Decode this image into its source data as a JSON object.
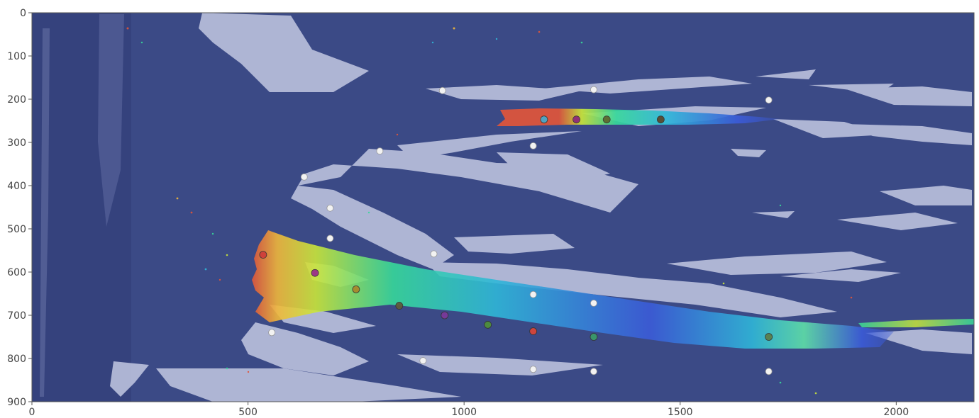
{
  "axes": {
    "x_ticks": [
      {
        "value": 0,
        "label": "0"
      },
      {
        "value": 500,
        "label": "500"
      },
      {
        "value": 1000,
        "label": "1000"
      },
      {
        "value": 1500,
        "label": "1500"
      },
      {
        "value": 2000,
        "label": "2000"
      }
    ],
    "y_ticks": [
      {
        "value": 0,
        "label": "0"
      },
      {
        "value": 100,
        "label": "100"
      },
      {
        "value": 200,
        "label": "200"
      },
      {
        "value": 300,
        "label": "300"
      },
      {
        "value": 400,
        "label": "400"
      },
      {
        "value": 500,
        "label": "500"
      },
      {
        "value": 600,
        "label": "600"
      },
      {
        "value": 700,
        "label": "700"
      },
      {
        "value": 800,
        "label": "800"
      },
      {
        "value": 900,
        "label": "900"
      }
    ],
    "x_range": [
      0,
      2180
    ],
    "y_range": [
      0,
      900
    ],
    "y_inverted": true
  },
  "colors": {
    "background": "#3b4a86",
    "ice": "#c3c8e2",
    "jet": [
      "#3b5bd8",
      "#2fb7d8",
      "#37d89a",
      "#c9e63a",
      "#f0b73a",
      "#e0553a"
    ]
  },
  "markers": {
    "white": [
      [
        950,
        180
      ],
      [
        1300,
        178
      ],
      [
        1705,
        202
      ],
      [
        1160,
        308
      ],
      [
        805,
        320
      ],
      [
        630,
        380
      ],
      [
        690,
        452
      ],
      [
        690,
        522
      ],
      [
        930,
        558
      ],
      [
        1160,
        652
      ],
      [
        1300,
        672
      ],
      [
        555,
        740
      ],
      [
        905,
        805
      ],
      [
        1160,
        825
      ],
      [
        1300,
        830
      ],
      [
        1705,
        830
      ]
    ],
    "colored": [
      {
        "x": 1185,
        "y": 247,
        "color": "#4aa8c8"
      },
      {
        "x": 1260,
        "y": 247,
        "color": "#8e2a7a"
      },
      {
        "x": 1330,
        "y": 247,
        "color": "#5d6b2f"
      },
      {
        "x": 1455,
        "y": 247,
        "color": "#5b4a2e"
      },
      {
        "x": 535,
        "y": 560,
        "color": "#cf3f3a"
      },
      {
        "x": 655,
        "y": 602,
        "color": "#9a2f8a"
      },
      {
        "x": 750,
        "y": 640,
        "color": "#a8892c"
      },
      {
        "x": 850,
        "y": 678,
        "color": "#5e5a3c"
      },
      {
        "x": 955,
        "y": 700,
        "color": "#7a3a9a"
      },
      {
        "x": 1055,
        "y": 722,
        "color": "#4f8f3c"
      },
      {
        "x": 1160,
        "y": 737,
        "color": "#d6453a"
      },
      {
        "x": 1300,
        "y": 750,
        "color": "#3a9a6a"
      },
      {
        "x": 1705,
        "y": 750,
        "color": "#5b7f4c"
      }
    ]
  }
}
